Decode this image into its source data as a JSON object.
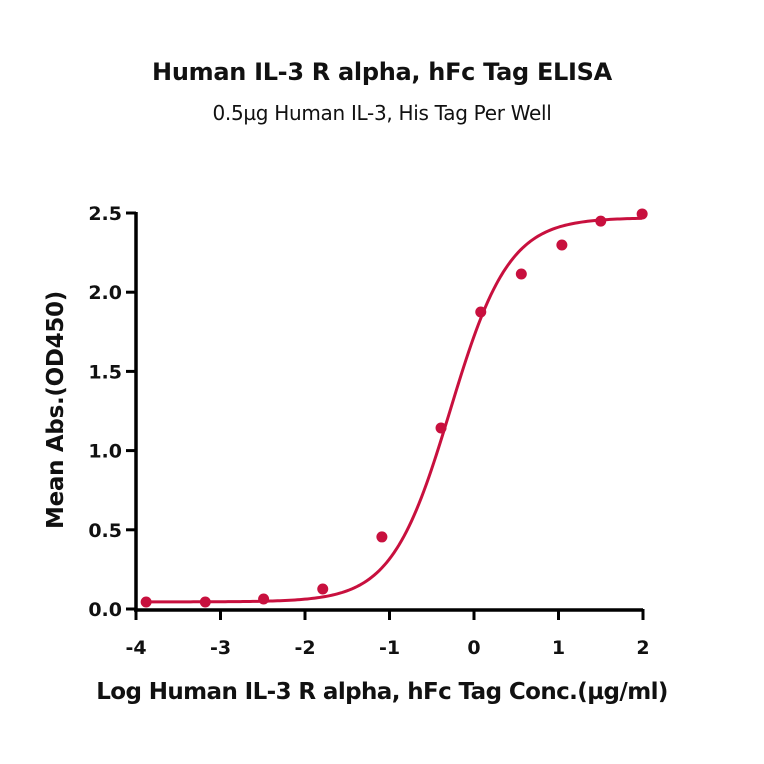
{
  "title": "Human IL-3 R alpha, hFc Tag ELISA",
  "subtitle": "0.5µg Human IL-3, His Tag Per Well",
  "colors": {
    "series": "#C8103E",
    "axis": "#000000",
    "text": "#111111"
  },
  "chart_data": {
    "type": "scatter",
    "title": "Human IL-3 R alpha, hFc Tag ELISA",
    "subtitle": "0.5µg Human IL-3, His Tag Per Well",
    "xlabel": "Log Human IL-3 R alpha, hFc Tag Conc.(µg/ml)",
    "ylabel": "Mean Abs.(OD450)",
    "xlim": [
      -4,
      2
    ],
    "ylim": [
      0,
      2.5
    ],
    "xticks": [
      -4,
      -3,
      -2,
      -1,
      0,
      1,
      2
    ],
    "xtick_labels": [
      "-4",
      "-3",
      "-2",
      "-1",
      "0",
      "1",
      "2"
    ],
    "yticks": [
      0,
      0.5,
      1.0,
      1.5,
      2.0,
      2.5
    ],
    "ytick_labels": [
      "0.0",
      "0.5",
      "1.0",
      "1.5",
      "2.0",
      "2.5"
    ],
    "grid": false,
    "legend": null,
    "series": [
      {
        "name": "Human IL-3 R alpha, hFc Tag",
        "color": "#C8103E",
        "x": [
          -3.88,
          -3.18,
          -2.49,
          -1.79,
          -1.09,
          -0.39,
          0.08,
          0.56,
          1.04,
          1.5,
          1.99
        ],
        "y": [
          0.044,
          0.044,
          0.063,
          0.126,
          0.455,
          1.143,
          1.875,
          2.115,
          2.298,
          2.449,
          2.494
        ],
        "fit": {
          "model": "4PL",
          "bottom": 0.045,
          "top": 2.47,
          "log_ec50": -0.28,
          "hill": 1.25
        }
      }
    ]
  }
}
